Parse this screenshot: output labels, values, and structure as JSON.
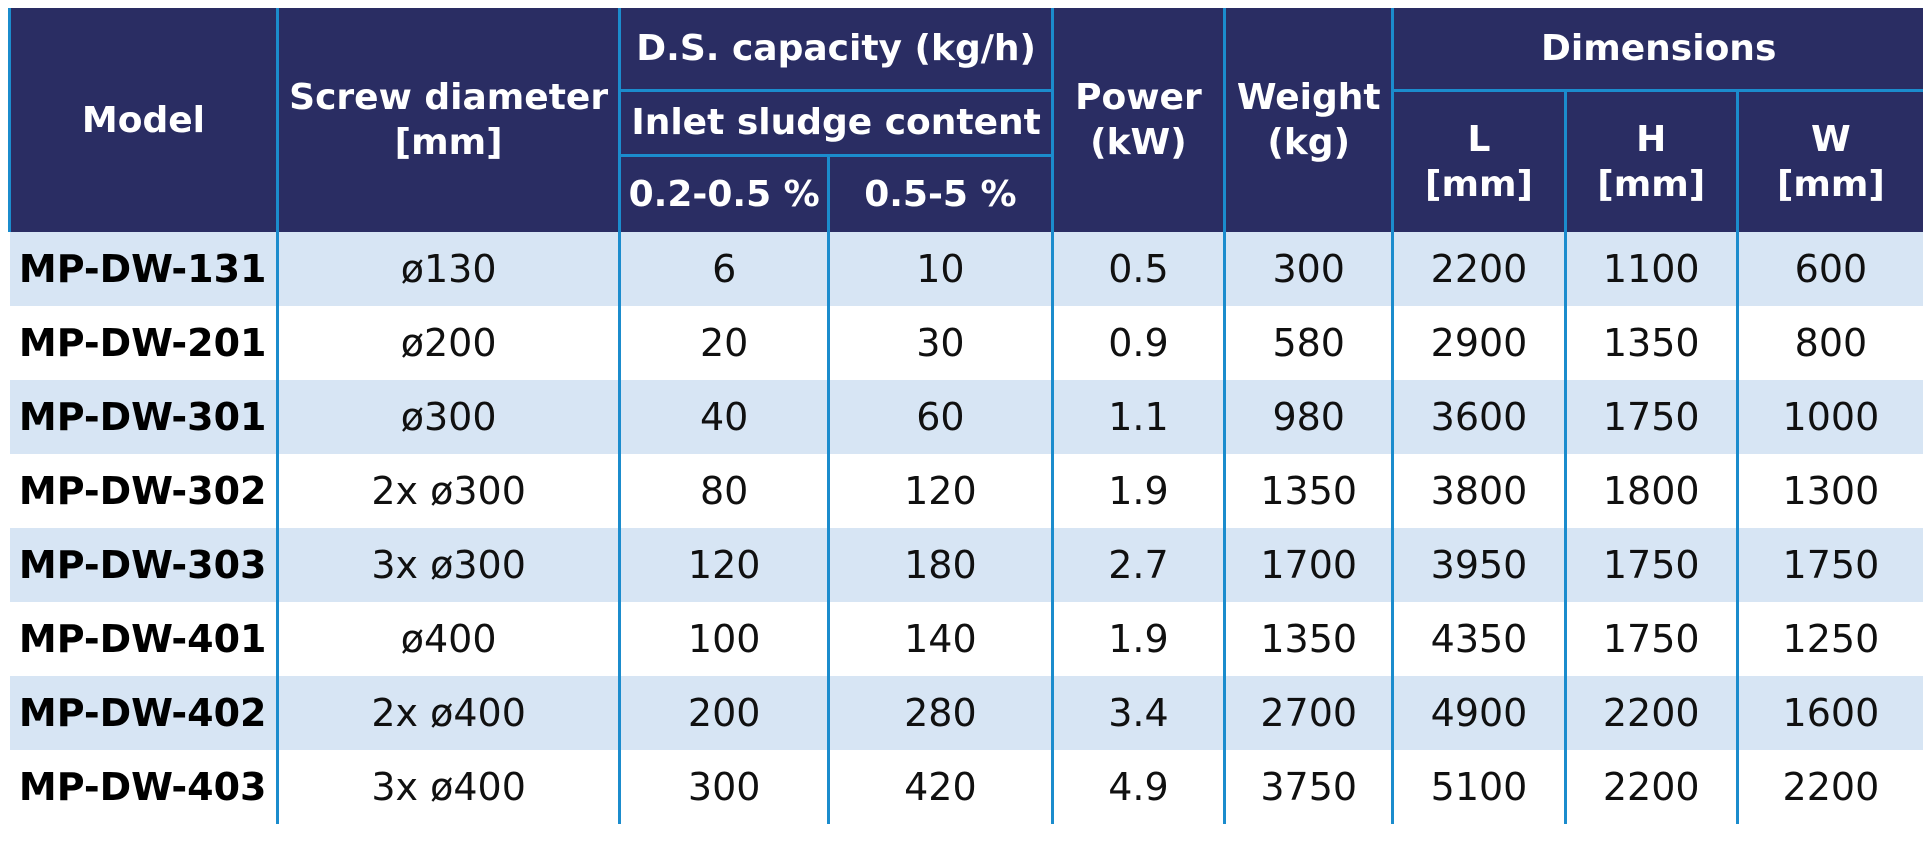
{
  "colors": {
    "header_bg": "#2a2d63",
    "row_stripe": "#d7e5f4",
    "grid_line": "#1b8ccd",
    "header_text": "#ffffff",
    "body_text": "#101010"
  },
  "header": {
    "model": "Model",
    "screw": {
      "label": "Screw diameter",
      "unit": "[mm]"
    },
    "ds_capacity": "D.S. capacity (kg/h)",
    "inlet_sludge": "Inlet sludge content",
    "range_low": "0.2-0.5 %",
    "range_high": "0.5-5 %",
    "power": {
      "label": "Power",
      "unit": "(kW)"
    },
    "weight": {
      "label": "Weight",
      "unit": "(kg)"
    },
    "dimensions": "Dimensions",
    "dim_l": {
      "label": "L",
      "unit": "[mm]"
    },
    "dim_h": {
      "label": "H",
      "unit": "[mm]"
    },
    "dim_w": {
      "label": "W",
      "unit": "[mm]"
    }
  },
  "rows": [
    {
      "model": "MP-DW-131",
      "screw": "ø130",
      "cap_low": "6",
      "cap_high": "10",
      "power": "0.5",
      "weight": "300",
      "l": "2200",
      "h": "1100",
      "w": "600"
    },
    {
      "model": "MP-DW-201",
      "screw": "ø200",
      "cap_low": "20",
      "cap_high": "30",
      "power": "0.9",
      "weight": "580",
      "l": "2900",
      "h": "1350",
      "w": "800"
    },
    {
      "model": "MP-DW-301",
      "screw": "ø300",
      "cap_low": "40",
      "cap_high": "60",
      "power": "1.1",
      "weight": "980",
      "l": "3600",
      "h": "1750",
      "w": "1000"
    },
    {
      "model": "MP-DW-302",
      "screw": "2x ø300",
      "cap_low": "80",
      "cap_high": "120",
      "power": "1.9",
      "weight": "1350",
      "l": "3800",
      "h": "1800",
      "w": "1300"
    },
    {
      "model": "MP-DW-303",
      "screw": "3x ø300",
      "cap_low": "120",
      "cap_high": "180",
      "power": "2.7",
      "weight": "1700",
      "l": "3950",
      "h": "1750",
      "w": "1750"
    },
    {
      "model": "MP-DW-401",
      "screw": "ø400",
      "cap_low": "100",
      "cap_high": "140",
      "power": "1.9",
      "weight": "1350",
      "l": "4350",
      "h": "1750",
      "w": "1250"
    },
    {
      "model": "MP-DW-402",
      "screw": "2x ø400",
      "cap_low": "200",
      "cap_high": "280",
      "power": "3.4",
      "weight": "2700",
      "l": "4900",
      "h": "2200",
      "w": "1600"
    },
    {
      "model": "MP-DW-403",
      "screw": "3x ø400",
      "cap_low": "300",
      "cap_high": "420",
      "power": "4.9",
      "weight": "3750",
      "l": "5100",
      "h": "2200",
      "w": "2200"
    }
  ]
}
